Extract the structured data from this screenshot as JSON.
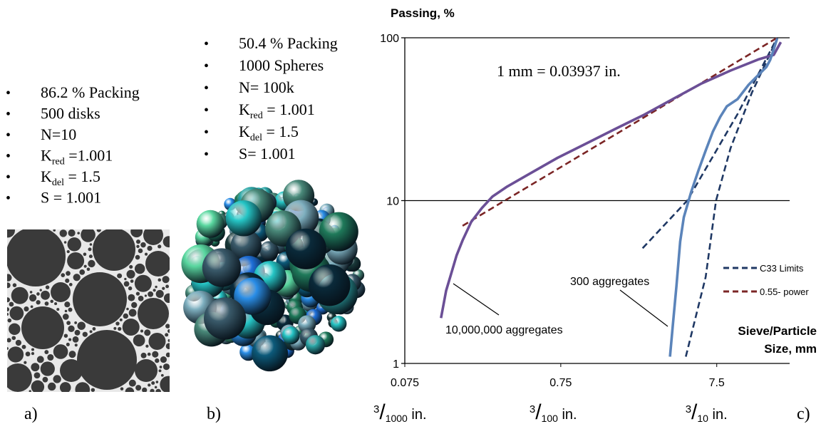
{
  "panel_a": {
    "label": "a)",
    "items": [
      "86.2 % Packing",
      "500 disks",
      "N=10",
      {
        "main": "K",
        "sub": "red",
        "tail": " =1.001"
      },
      {
        "main": "K",
        "sub": "del",
        "tail": " = 1.5"
      },
      "S = 1.001"
    ]
  },
  "panel_b": {
    "label": "b)",
    "items": [
      "50.4 % Packing",
      "1000 Spheres",
      "N= 100k",
      {
        "main": "K",
        "sub": "red",
        "tail": " = 1.001"
      },
      {
        "main": "K",
        "sub": "del",
        "tail": " = 1.5"
      },
      "S=  1.001"
    ]
  },
  "chart_data": {
    "type": "line",
    "panel_label": "c)",
    "y_label": "Passing, %",
    "x_label_lines": [
      "Sieve/Particle",
      "Size, mm"
    ],
    "annotation": "1 mm = 0.03937 in.",
    "log_x": true,
    "log_y": true,
    "xlim": [
      0.075,
      22
    ],
    "ylim": [
      1,
      100
    ],
    "xticks": [
      0.075,
      0.75,
      7.5
    ],
    "yticks": [
      1,
      10,
      100
    ],
    "inch_labels": [
      {
        "num": "3",
        "den": "1000",
        "unit": " in."
      },
      {
        "num": "3",
        "den": "100",
        "unit": " in."
      },
      {
        "num": "3",
        "den": "10",
        "unit": " in."
      }
    ],
    "series": [
      {
        "name": "C33  Limits",
        "color": "#1f3864",
        "dashed": true,
        "show_in_legend": true,
        "x": [
          2.51,
          4.85,
          10.2,
          18.3,
          null,
          4.75,
          6.37,
          7.42,
          9.2,
          12.6,
          18.3
        ],
        "values": [
          5.1,
          10,
          34,
          100,
          null,
          1.1,
          3.4,
          10,
          21,
          46,
          99
        ]
      },
      {
        "name": "0.55- power",
        "color": "#7b2525",
        "dashed": true,
        "show_in_legend": true,
        "x": [
          0.176,
          18.3
        ],
        "values": [
          7,
          100
        ]
      },
      {
        "name": "10,000,000 aggregates",
        "color": "#6b4f96",
        "dashed": false,
        "show_in_legend": false,
        "x": [
          0.128,
          0.138,
          0.148,
          0.161,
          0.176,
          0.2,
          0.234,
          0.274,
          0.34,
          0.467,
          0.715,
          1.09,
          1.67,
          2.56,
          3.92,
          6.0,
          9.2,
          14.0,
          17.4,
          19.3
        ],
        "values": [
          1.9,
          2.8,
          3.5,
          4.6,
          5.7,
          7.4,
          9,
          10.6,
          12.2,
          14.5,
          18.3,
          22.4,
          27.5,
          33.6,
          42,
          52.4,
          62.9,
          73.8,
          78.5,
          94
        ]
      },
      {
        "name": "300 aggregates",
        "color": "#5b84ba",
        "dashed": false,
        "show_in_legend": false,
        "x": [
          3.76,
          3.92,
          4.14,
          4.37,
          4.61,
          5.14,
          5.72,
          6.37,
          7.09,
          7.89,
          8.7,
          10.2,
          12.0,
          13.3,
          15.6,
          16.5,
          17.4,
          18.3
        ],
        "values": [
          1.1,
          1.7,
          3,
          5.6,
          7.9,
          11.3,
          15.3,
          20.3,
          26.6,
          32.6,
          37.9,
          42,
          51.4,
          56.8,
          66.1,
          73.1,
          85.1,
          99
        ]
      }
    ]
  }
}
